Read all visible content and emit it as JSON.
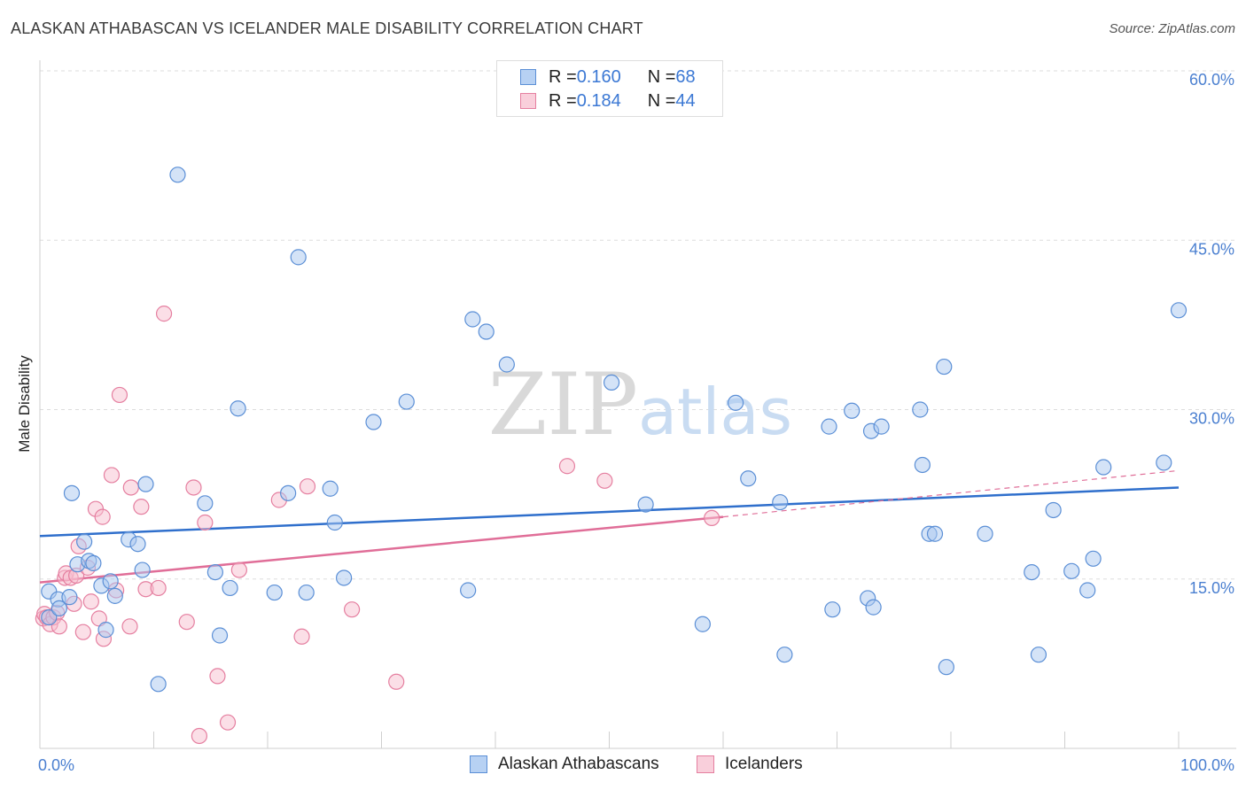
{
  "header": {
    "title": "ALASKAN ATHABASCAN VS ICELANDER MALE DISABILITY CORRELATION CHART",
    "source": "Source: ZipAtlas.com"
  },
  "watermark": {
    "zip": "ZIP",
    "atlas": "atlas"
  },
  "colors": {
    "blue_fill": "#a9c8f0",
    "blue_stroke": "#5b8fd6",
    "blue_line": "#2f6fcc",
    "pink_fill": "#f7bfd0",
    "pink_stroke": "#e57fa0",
    "pink_line": "#e06e98",
    "tick_text": "#4a7fd0",
    "grid": "#dddddd"
  },
  "legend_top": {
    "rows": [
      {
        "r_label": "R = ",
        "r_value": "0.160",
        "n_label": "N = ",
        "n_value": "68",
        "series": "blue"
      },
      {
        "r_label": "R = ",
        "r_value": "0.184",
        "n_label": "N = ",
        "n_value": "44",
        "series": "pink"
      }
    ]
  },
  "chart_data": {
    "type": "scatter",
    "title": "ALASKAN ATHABASCAN VS ICELANDER MALE DISABILITY CORRELATION CHART",
    "xlabel": "",
    "ylabel": "Male Disability",
    "xlim": [
      0,
      100
    ],
    "ylim": [
      0,
      60
    ],
    "x_tick_labels": [
      "0.0%",
      "100.0%"
    ],
    "y_ticks": [
      15,
      30,
      45,
      60
    ],
    "y_tick_labels": [
      "15.0%",
      "30.0%",
      "45.0%",
      "60.0%"
    ],
    "grid": "horizontal dashed",
    "legend_placement": "top-center and bottom",
    "series": [
      {
        "name": "Alaskan Athabascans",
        "color": "blue",
        "trend": {
          "x": [
            0,
            100
          ],
          "y": [
            18.8,
            23.1
          ]
        },
        "points": [
          [
            0.8,
            13.9
          ],
          [
            0.8,
            11.6
          ],
          [
            1.6,
            13.2
          ],
          [
            1.7,
            12.4
          ],
          [
            2.6,
            13.4
          ],
          [
            2.8,
            22.6
          ],
          [
            3.3,
            16.3
          ],
          [
            3.9,
            18.3
          ],
          [
            4.3,
            16.6
          ],
          [
            4.7,
            16.4
          ],
          [
            5.4,
            14.4
          ],
          [
            5.8,
            10.5
          ],
          [
            6.2,
            14.8
          ],
          [
            6.6,
            13.5
          ],
          [
            7.8,
            18.5
          ],
          [
            8.6,
            18.1
          ],
          [
            9.0,
            15.8
          ],
          [
            9.3,
            23.4
          ],
          [
            10.4,
            5.7
          ],
          [
            12.1,
            50.8
          ],
          [
            14.5,
            21.7
          ],
          [
            15.4,
            15.6
          ],
          [
            15.8,
            10.0
          ],
          [
            16.7,
            14.2
          ],
          [
            17.4,
            30.1
          ],
          [
            20.6,
            13.8
          ],
          [
            21.8,
            22.6
          ],
          [
            22.7,
            43.5
          ],
          [
            23.4,
            13.8
          ],
          [
            25.5,
            23.0
          ],
          [
            25.9,
            20.0
          ],
          [
            26.7,
            15.1
          ],
          [
            29.3,
            28.9
          ],
          [
            32.2,
            30.7
          ],
          [
            37.6,
            14.0
          ],
          [
            38.0,
            38.0
          ],
          [
            39.2,
            36.9
          ],
          [
            41.0,
            34.0
          ],
          [
            50.2,
            32.4
          ],
          [
            53.2,
            21.6
          ],
          [
            58.2,
            11.0
          ],
          [
            61.1,
            30.6
          ],
          [
            62.2,
            23.9
          ],
          [
            65.4,
            8.3
          ],
          [
            65.0,
            21.8
          ],
          [
            69.3,
            28.5
          ],
          [
            69.6,
            12.3
          ],
          [
            71.3,
            29.9
          ],
          [
            72.7,
            13.3
          ],
          [
            73.0,
            28.1
          ],
          [
            73.2,
            12.5
          ],
          [
            73.9,
            28.5
          ],
          [
            77.3,
            30.0
          ],
          [
            77.5,
            25.1
          ],
          [
            78.1,
            19.0
          ],
          [
            78.6,
            19.0
          ],
          [
            79.4,
            33.8
          ],
          [
            79.6,
            7.2
          ],
          [
            83.0,
            19.0
          ],
          [
            87.1,
            15.6
          ],
          [
            87.7,
            8.3
          ],
          [
            89.0,
            21.1
          ],
          [
            90.6,
            15.7
          ],
          [
            92.0,
            14.0
          ],
          [
            92.5,
            16.8
          ],
          [
            93.4,
            24.9
          ],
          [
            98.7,
            25.3
          ],
          [
            100.0,
            38.8
          ]
        ]
      },
      {
        "name": "Icelanders",
        "color": "pink",
        "trend": {
          "x": [
            0,
            60
          ],
          "y": [
            14.7,
            20.5
          ]
        },
        "trend_extension": {
          "x": [
            60,
            100
          ],
          "y": [
            20.5,
            24.6
          ]
        },
        "points": [
          [
            0.3,
            11.5
          ],
          [
            0.4,
            11.9
          ],
          [
            0.6,
            11.6
          ],
          [
            0.9,
            11.0
          ],
          [
            1.2,
            11.6
          ],
          [
            1.5,
            12.0
          ],
          [
            1.7,
            10.8
          ],
          [
            2.2,
            15.1
          ],
          [
            2.3,
            15.5
          ],
          [
            2.7,
            15.1
          ],
          [
            3.0,
            12.8
          ],
          [
            3.2,
            15.3
          ],
          [
            3.4,
            17.9
          ],
          [
            3.8,
            10.3
          ],
          [
            4.2,
            16.0
          ],
          [
            4.5,
            13.0
          ],
          [
            4.9,
            21.2
          ],
          [
            5.2,
            11.5
          ],
          [
            5.5,
            20.5
          ],
          [
            5.6,
            9.7
          ],
          [
            6.3,
            24.2
          ],
          [
            6.7,
            14.0
          ],
          [
            7.0,
            31.3
          ],
          [
            7.9,
            10.8
          ],
          [
            8.0,
            23.1
          ],
          [
            8.9,
            21.4
          ],
          [
            9.3,
            14.1
          ],
          [
            10.4,
            14.2
          ],
          [
            10.9,
            38.5
          ],
          [
            12.9,
            11.2
          ],
          [
            13.5,
            23.1
          ],
          [
            14.0,
            1.1
          ],
          [
            14.5,
            20.0
          ],
          [
            15.6,
            6.4
          ],
          [
            16.5,
            2.3
          ],
          [
            17.5,
            15.8
          ],
          [
            21.0,
            22.0
          ],
          [
            23.0,
            9.9
          ],
          [
            23.5,
            23.2
          ],
          [
            27.4,
            12.3
          ],
          [
            31.3,
            5.9
          ],
          [
            46.3,
            25.0
          ],
          [
            49.6,
            23.7
          ],
          [
            59.0,
            20.4
          ]
        ]
      }
    ]
  },
  "legend_bottom": {
    "items": [
      {
        "label": "Alaskan Athabascans",
        "series": "blue"
      },
      {
        "label": "Icelanders",
        "series": "pink"
      }
    ]
  }
}
